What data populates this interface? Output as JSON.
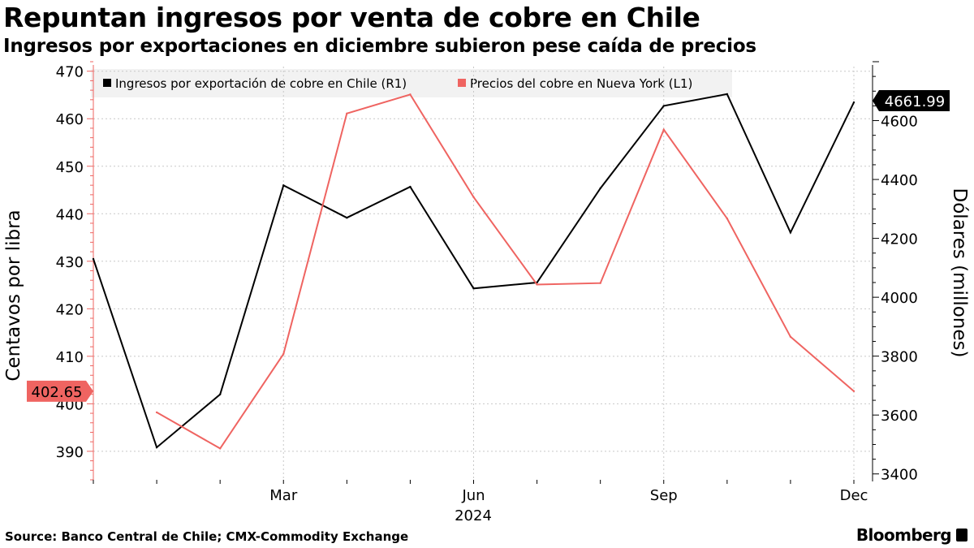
{
  "title": "Repuntan ingresos por venta de cobre en Chile",
  "subtitle": "Ingresos por exportaciones en diciembre subieron pese caída de precios",
  "source": "Source: Banco Central de Chile; CMX-Commodity Exchange",
  "brand": "Bloomberg",
  "chart_data": {
    "type": "line",
    "x_tick_labels": [
      "Mar",
      "Jun",
      "Sep",
      "Dec"
    ],
    "x_year_label": "2024",
    "x": [
      "2023-12",
      "2024-01",
      "2024-02",
      "2024-03",
      "2024-04",
      "2024-05",
      "2024-06",
      "2024-07",
      "2024-08",
      "2024-09",
      "2024-10",
      "2024-11",
      "2024-12"
    ],
    "series": [
      {
        "name": "Ingresos por exportación de cobre en Chile (R1)",
        "axis": "right",
        "color": "#000000",
        "values": [
          4130,
          3490,
          3670,
          4380,
          4270,
          4375,
          4030,
          4050,
          4370,
          4650,
          4690,
          4220,
          4661.99
        ]
      },
      {
        "name": "Precios del cobre en Nueva York (L1)",
        "axis": "left",
        "color": "#ef6461",
        "values": [
          null,
          398.2,
          390.6,
          410.5,
          461.1,
          465.1,
          443.5,
          425.1,
          425.4,
          457.7,
          439.0,
          414.1,
          402.65
        ]
      }
    ],
    "left_axis": {
      "label": "Centavos por libra",
      "ylim": [
        384,
        472
      ],
      "ticks": [
        390,
        400,
        410,
        420,
        430,
        440,
        450,
        460,
        470
      ]
    },
    "right_axis": {
      "label": "Dólares (millones)",
      "ylim": [
        3380,
        4800
      ],
      "ticks": [
        3400,
        3600,
        3800,
        4000,
        4200,
        4400,
        4600
      ]
    },
    "last_value_labels": {
      "right": "4661.99",
      "left": "402.65"
    },
    "gridlines": true,
    "legend_position": "top-left"
  }
}
